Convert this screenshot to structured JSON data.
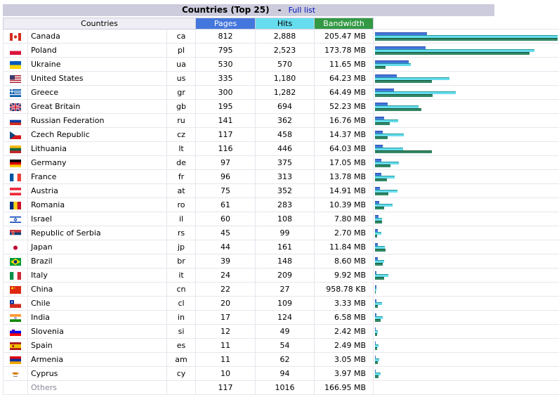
{
  "header": {
    "title": "Countries (Top 25)",
    "separator": "-",
    "full_list_link": "Full list"
  },
  "columns": {
    "countries": "Countries",
    "pages": "Pages",
    "hits": "Hits",
    "bandwidth": "Bandwidth"
  },
  "colors": {
    "pages": "#4477dd",
    "hits": "#66ddee",
    "bandwidth": "#338866"
  },
  "rows": [
    {
      "name": "Canada",
      "code": "ca",
      "pages": "812",
      "hits": "2,888",
      "bandwidth": "205.47 MB",
      "icon": "canada-flag-icon"
    },
    {
      "name": "Poland",
      "code": "pl",
      "pages": "795",
      "hits": "2,523",
      "bandwidth": "173.78 MB",
      "icon": "poland-flag-icon"
    },
    {
      "name": "Ukraine",
      "code": "ua",
      "pages": "530",
      "hits": "570",
      "bandwidth": "11.65 MB",
      "icon": "ukraine-flag-icon"
    },
    {
      "name": "United States",
      "code": "us",
      "pages": "335",
      "hits": "1,180",
      "bandwidth": "64.23 MB",
      "icon": "united-states-flag-icon"
    },
    {
      "name": "Greece",
      "code": "gr",
      "pages": "300",
      "hits": "1,282",
      "bandwidth": "64.49 MB",
      "icon": "greece-flag-icon"
    },
    {
      "name": "Great Britain",
      "code": "gb",
      "pages": "195",
      "hits": "694",
      "bandwidth": "52.23 MB",
      "icon": "great-britain-flag-icon"
    },
    {
      "name": "Russian Federation",
      "code": "ru",
      "pages": "141",
      "hits": "362",
      "bandwidth": "16.76 MB",
      "icon": "russia-flag-icon"
    },
    {
      "name": "Czech Republic",
      "code": "cz",
      "pages": "117",
      "hits": "458",
      "bandwidth": "14.37 MB",
      "icon": "czech-flag-icon"
    },
    {
      "name": "Lithuania",
      "code": "lt",
      "pages": "116",
      "hits": "446",
      "bandwidth": "64.03 MB",
      "icon": "lithuania-flag-icon"
    },
    {
      "name": "Germany",
      "code": "de",
      "pages": "97",
      "hits": "375",
      "bandwidth": "17.05 MB",
      "icon": "germany-flag-icon"
    },
    {
      "name": "France",
      "code": "fr",
      "pages": "96",
      "hits": "313",
      "bandwidth": "13.78 MB",
      "icon": "france-flag-icon"
    },
    {
      "name": "Austria",
      "code": "at",
      "pages": "75",
      "hits": "352",
      "bandwidth": "14.91 MB",
      "icon": "austria-flag-icon"
    },
    {
      "name": "Romania",
      "code": "ro",
      "pages": "61",
      "hits": "283",
      "bandwidth": "10.39 MB",
      "icon": "romania-flag-icon"
    },
    {
      "name": "Israel",
      "code": "il",
      "pages": "60",
      "hits": "108",
      "bandwidth": "7.80 MB",
      "icon": "israel-flag-icon"
    },
    {
      "name": "Republic of Serbia",
      "code": "rs",
      "pages": "45",
      "hits": "99",
      "bandwidth": "2.70 MB",
      "icon": "serbia-flag-icon"
    },
    {
      "name": "Japan",
      "code": "jp",
      "pages": "44",
      "hits": "161",
      "bandwidth": "11.84 MB",
      "icon": "japan-flag-icon"
    },
    {
      "name": "Brazil",
      "code": "br",
      "pages": "39",
      "hits": "148",
      "bandwidth": "8.60 MB",
      "icon": "brazil-flag-icon"
    },
    {
      "name": "Italy",
      "code": "it",
      "pages": "24",
      "hits": "209",
      "bandwidth": "9.92 MB",
      "icon": "italy-flag-icon"
    },
    {
      "name": "China",
      "code": "cn",
      "pages": "22",
      "hits": "27",
      "bandwidth": "958.78 KB",
      "icon": "china-flag-icon"
    },
    {
      "name": "Chile",
      "code": "cl",
      "pages": "20",
      "hits": "109",
      "bandwidth": "3.33 MB",
      "icon": "chile-flag-icon"
    },
    {
      "name": "India",
      "code": "in",
      "pages": "17",
      "hits": "124",
      "bandwidth": "6.58 MB",
      "icon": "india-flag-icon"
    },
    {
      "name": "Slovenia",
      "code": "si",
      "pages": "12",
      "hits": "49",
      "bandwidth": "2.42 MB",
      "icon": "slovenia-flag-icon"
    },
    {
      "name": "Spain",
      "code": "es",
      "pages": "11",
      "hits": "54",
      "bandwidth": "2.49 MB",
      "icon": "spain-flag-icon"
    },
    {
      "name": "Armenia",
      "code": "am",
      "pages": "11",
      "hits": "62",
      "bandwidth": "3.05 MB",
      "icon": "armenia-flag-icon"
    },
    {
      "name": "Cyprus",
      "code": "cy",
      "pages": "10",
      "hits": "94",
      "bandwidth": "3.97 MB",
      "icon": "cyprus-flag-icon"
    }
  ],
  "others": {
    "label": "Others",
    "pages": "117",
    "hits": "1016",
    "bandwidth": "166.95 MB"
  }
}
